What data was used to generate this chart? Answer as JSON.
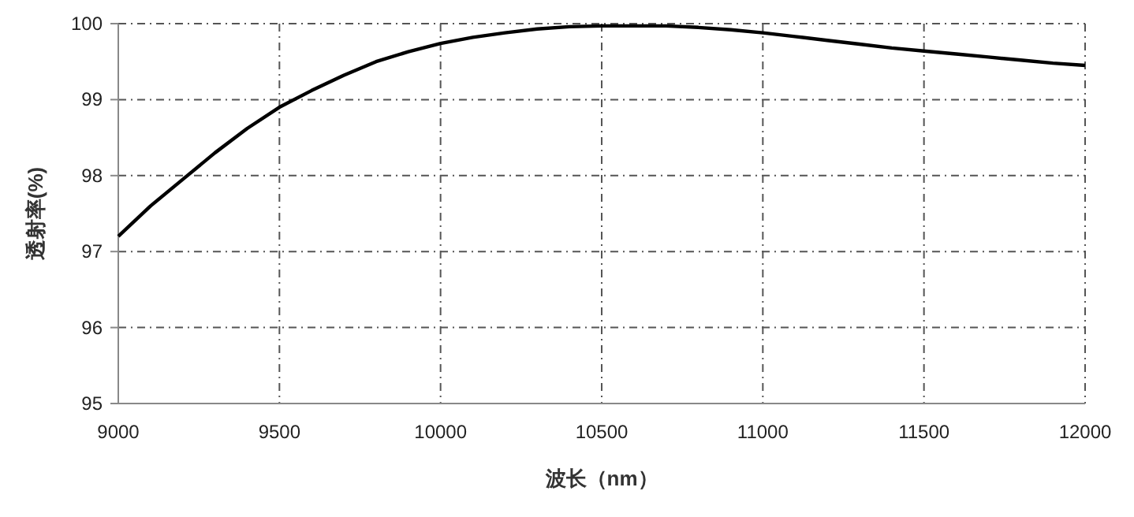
{
  "chart_data": {
    "type": "line",
    "xlabel": "波长（nm）",
    "ylabel": "透射率(%)",
    "x": [
      9000,
      9100,
      9200,
      9300,
      9400,
      9500,
      9600,
      9700,
      9800,
      9900,
      10000,
      10100,
      10200,
      10300,
      10400,
      10500,
      10600,
      10700,
      10800,
      10900,
      11000,
      11100,
      11200,
      11300,
      11400,
      11500,
      11600,
      11700,
      11800,
      11900,
      12000
    ],
    "series": [
      {
        "color": "#000000",
        "values": [
          97.2,
          97.6,
          97.95,
          98.3,
          98.62,
          98.9,
          99.12,
          99.32,
          99.5,
          99.63,
          99.74,
          99.82,
          99.88,
          99.93,
          99.96,
          99.97,
          99.97,
          99.97,
          99.95,
          99.92,
          99.88,
          99.83,
          99.78,
          99.73,
          99.68,
          99.64,
          99.6,
          99.56,
          99.52,
          99.48,
          99.45
        ]
      }
    ],
    "xlim": [
      9000,
      12000
    ],
    "ylim": [
      95,
      100
    ],
    "xticks": [
      9000,
      9500,
      10000,
      10500,
      11000,
      11500,
      12000
    ],
    "yticks": [
      95,
      96,
      97,
      98,
      99,
      100
    ],
    "grid": true,
    "marker": "none",
    "line_style": "solid"
  }
}
